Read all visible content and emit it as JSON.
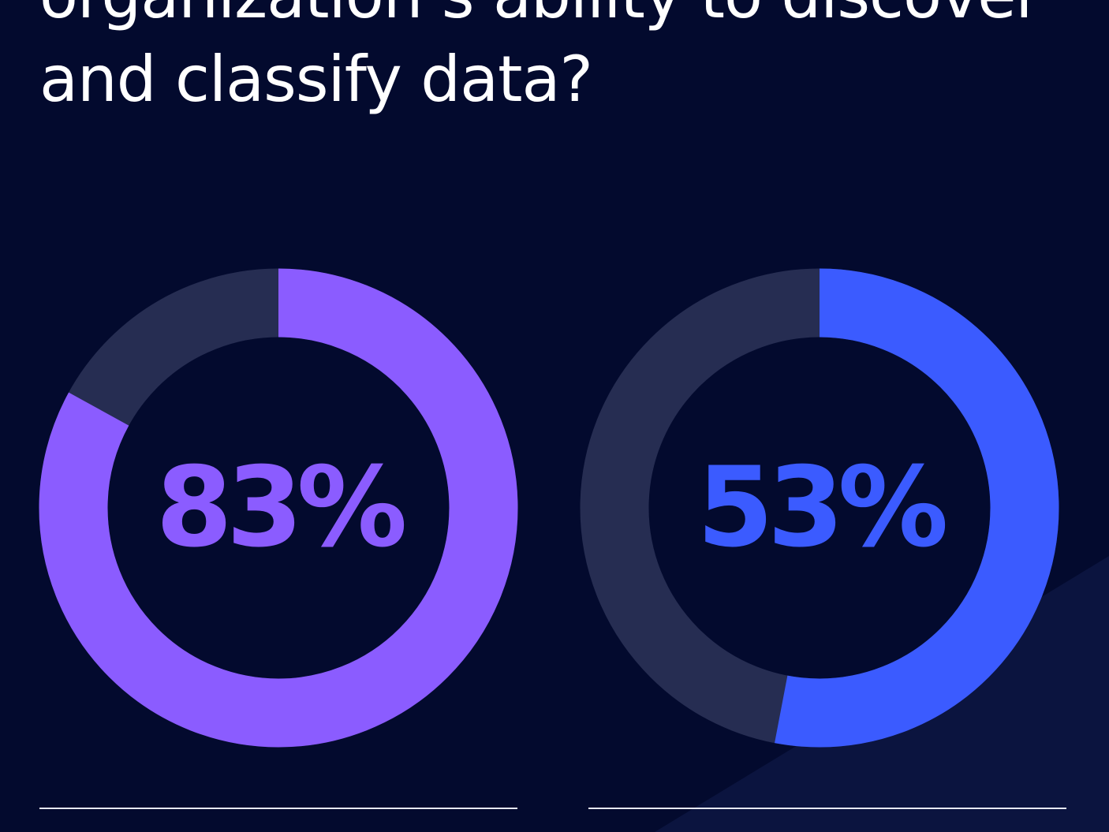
{
  "headline": {
    "line1": "organization’s ability to discover",
    "line2": "and classify data?"
  },
  "colors": {
    "background": "#030a2e",
    "track": "#262d52",
    "purple": "#8b5cff",
    "blue": "#3b5bff"
  },
  "chart_data": [
    {
      "type": "pie",
      "variant": "donut",
      "values": [
        83,
        17
      ],
      "center_label": "83%",
      "color": "#8b5cff"
    },
    {
      "type": "pie",
      "variant": "donut",
      "values": [
        53,
        47
      ],
      "center_label": "53%",
      "color": "#3b5bff"
    }
  ]
}
